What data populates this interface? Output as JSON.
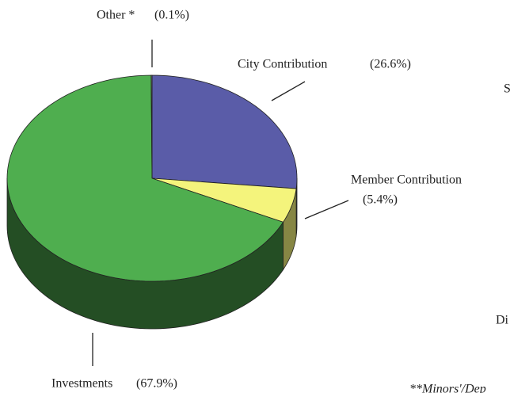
{
  "chart_data": {
    "type": "pie",
    "categories": [
      "City Contribution",
      "Member Contribution",
      "Investments",
      "Other *"
    ],
    "values": [
      26.6,
      5.4,
      67.9,
      0.1
    ],
    "value_labels": [
      "(26.6%)",
      "(5.4%)",
      "(67.9%)",
      "(0.1%)"
    ],
    "colors": [
      "#5a5ca8",
      "#f4f47c",
      "#4fae4f",
      "#8a8a8a"
    ],
    "annotations": [
      "S",
      "Di",
      "**Minors'/Dep"
    ]
  }
}
